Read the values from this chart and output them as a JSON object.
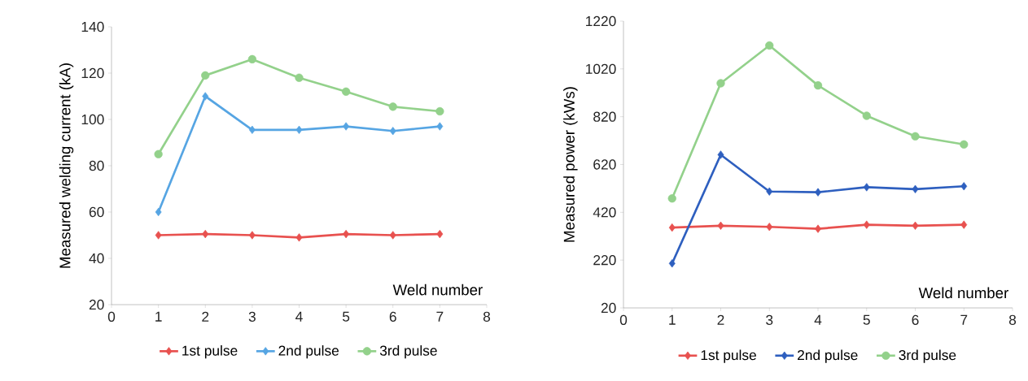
{
  "chart_data": [
    {
      "type": "line",
      "xlabel": "Weld number",
      "ylabel": "Measured welding current (kA)",
      "x": [
        1,
        2,
        3,
        4,
        5,
        6,
        7
      ],
      "xlim": [
        0,
        8
      ],
      "xticks": [
        0,
        1,
        2,
        3,
        4,
        5,
        6,
        7,
        8
      ],
      "ylim": [
        20,
        140
      ],
      "yticks": [
        20,
        40,
        60,
        80,
        100,
        120,
        140
      ],
      "grid": false,
      "legend": "bottom",
      "line_style": "solid",
      "series": [
        {
          "name": "1st pulse",
          "color": "#e8514f",
          "marker": "diamond",
          "values": [
            50,
            50.5,
            50,
            49,
            50.5,
            50,
            50.5
          ]
        },
        {
          "name": "2nd pulse",
          "color": "#56a5e3",
          "marker": "diamond",
          "values": [
            60,
            110,
            95.5,
            95.5,
            97,
            95,
            97
          ]
        },
        {
          "name": "3rd pulse",
          "color": "#93d18b",
          "marker": "circle",
          "values": [
            85,
            119,
            126,
            118,
            112,
            105.5,
            103.5
          ]
        }
      ]
    },
    {
      "type": "line",
      "xlabel": "Weld number",
      "ylabel": "Measured  power (kWs)",
      "x": [
        1,
        2,
        3,
        4,
        5,
        6,
        7
      ],
      "xlim": [
        0,
        8
      ],
      "xticks": [
        0,
        1,
        2,
        3,
        4,
        5,
        6,
        7,
        8
      ],
      "ylim": [
        20,
        1220
      ],
      "yticks": [
        20,
        220,
        420,
        620,
        820,
        1020,
        1220
      ],
      "grid": false,
      "legend": "bottom",
      "line_style": "solid",
      "series": [
        {
          "name": "1st pulse",
          "color": "#e8514f",
          "marker": "diamond",
          "values": [
            356,
            364,
            359,
            351,
            368,
            364,
            368
          ]
        },
        {
          "name": "2nd pulse",
          "color": "#2e5fbf",
          "marker": "diamond",
          "values": [
            206,
            661,
            507,
            504,
            525,
            517,
            529
          ]
        },
        {
          "name": "3rd pulse",
          "color": "#93d18b",
          "marker": "circle",
          "values": [
            478,
            960,
            1118,
            951,
            824,
            738,
            704
          ]
        }
      ]
    }
  ]
}
